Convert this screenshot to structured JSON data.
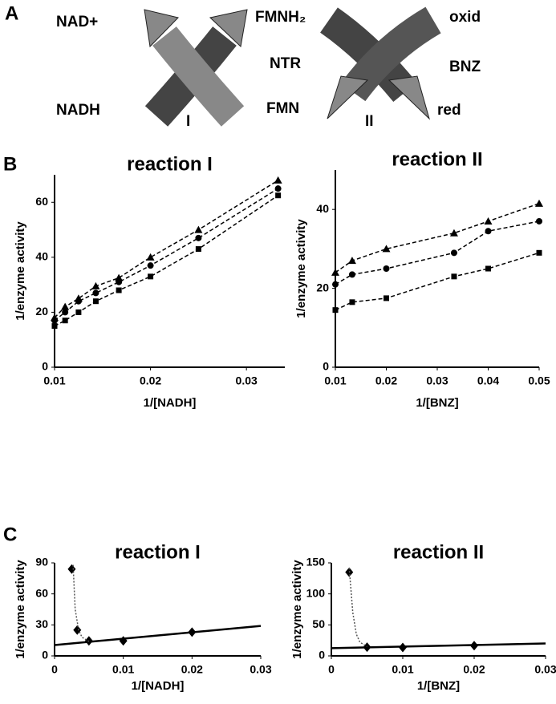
{
  "diagram": {
    "panel": "A",
    "left_top": "NAD+",
    "left_bottom": "NADH",
    "mid_top": "FMNH₂",
    "mid_center": "NTR",
    "mid_bottom": "FMN",
    "right_top": "oxid",
    "right_center": "BNZ",
    "right_bottom": "red",
    "reaction_1": "I",
    "reaction_2": "II"
  },
  "panels": [
    "B",
    "C"
  ],
  "chart_data": [
    {
      "type": "scatter",
      "title": "reaction I",
      "x_label": "1/[NADH]",
      "y_label": "1/enzyme activity",
      "x": [
        0.01,
        0.0111,
        0.0125,
        0.0143,
        0.0167,
        0.02,
        0.025,
        0.0333
      ],
      "xlim": [
        0.01,
        0.034
      ],
      "ylim": [
        0,
        70
      ],
      "xticks": [
        0.01,
        0.02,
        0.03
      ],
      "yticks": [
        0,
        20,
        40,
        60
      ],
      "series": [
        {
          "marker": "triangle",
          "line": "dashed",
          "color": "#000000",
          "values": [
            18,
            22,
            25,
            29.5,
            32.5,
            40,
            50,
            68
          ]
        },
        {
          "marker": "circle",
          "line": "dashed",
          "color": "#000000",
          "values": [
            17,
            20,
            24,
            27,
            31,
            37,
            47,
            65
          ]
        },
        {
          "marker": "square",
          "line": "dashed",
          "color": "#000000",
          "values": [
            15,
            17,
            20,
            24,
            28,
            33,
            43,
            62.5
          ]
        }
      ]
    },
    {
      "type": "scatter",
      "title": "reaction II",
      "x_label": "1/[BNZ]",
      "y_label": "1/enzyme activity",
      "x": [
        0.01,
        0.0133,
        0.02,
        0.0333,
        0.04,
        0.05
      ],
      "xlim": [
        0.01,
        0.05
      ],
      "ylim": [
        0,
        50
      ],
      "xticks": [
        0.01,
        0.02,
        0.03,
        0.04,
        0.05
      ],
      "yticks": [
        0,
        20,
        40
      ],
      "series": [
        {
          "marker": "triangle",
          "line": "dashed",
          "color": "#000000",
          "values": [
            24,
            27,
            30,
            34,
            37,
            41.5
          ]
        },
        {
          "marker": "circle",
          "line": "dashed",
          "color": "#000000",
          "values": [
            21,
            23.5,
            25,
            29,
            34.5,
            37
          ]
        },
        {
          "marker": "square",
          "line": "dashed",
          "color": "#000000",
          "values": [
            14.5,
            16.5,
            17.5,
            23,
            25,
            29
          ]
        }
      ]
    },
    {
      "type": "scatter",
      "title": "reaction I",
      "x_label": "1/[NADH]",
      "y_label": "1/enzyme activity",
      "x": [
        0.0025,
        0.0033,
        0.005,
        0.01,
        0.02
      ],
      "xlim": [
        0,
        0.03
      ],
      "ylim": [
        0,
        90
      ],
      "xticks": [
        0,
        0.01,
        0.02,
        0.03
      ],
      "yticks": [
        0,
        30,
        60,
        90
      ],
      "series": [
        {
          "marker": "diamond",
          "color": "#000000",
          "values": [
            84,
            25,
            14.5,
            14.5,
            23
          ]
        },
        {
          "line": "solid",
          "color": "#000000",
          "x": [
            0,
            0.03
          ],
          "values": [
            10.5,
            29
          ]
        },
        {
          "line": "dotted",
          "color": "#555555",
          "x": [
            0.0027,
            0.003,
            0.0035,
            0.004,
            0.005
          ],
          "values": [
            88,
            45,
            25,
            18,
            14
          ]
        }
      ]
    },
    {
      "type": "scatter",
      "title": "reaction II",
      "x_label": "1/[BNZ]",
      "y_label": "1/enzyme activity",
      "x": [
        0.0025,
        0.005,
        0.01,
        0.02
      ],
      "xlim": [
        0,
        0.03
      ],
      "ylim": [
        0,
        150
      ],
      "xticks": [
        0,
        0.01,
        0.02,
        0.03
      ],
      "yticks": [
        0,
        50,
        100,
        150
      ],
      "series": [
        {
          "marker": "diamond",
          "color": "#000000",
          "values": [
            135,
            14,
            13.5,
            16.5
          ]
        },
        {
          "line": "solid",
          "color": "#000000",
          "x": [
            0,
            0.03
          ],
          "values": [
            12.5,
            20
          ]
        },
        {
          "line": "dotted",
          "color": "#555555",
          "x": [
            0.0025,
            0.003,
            0.0035,
            0.004,
            0.005
          ],
          "values": [
            142,
            70,
            35,
            22,
            15
          ]
        }
      ]
    }
  ]
}
